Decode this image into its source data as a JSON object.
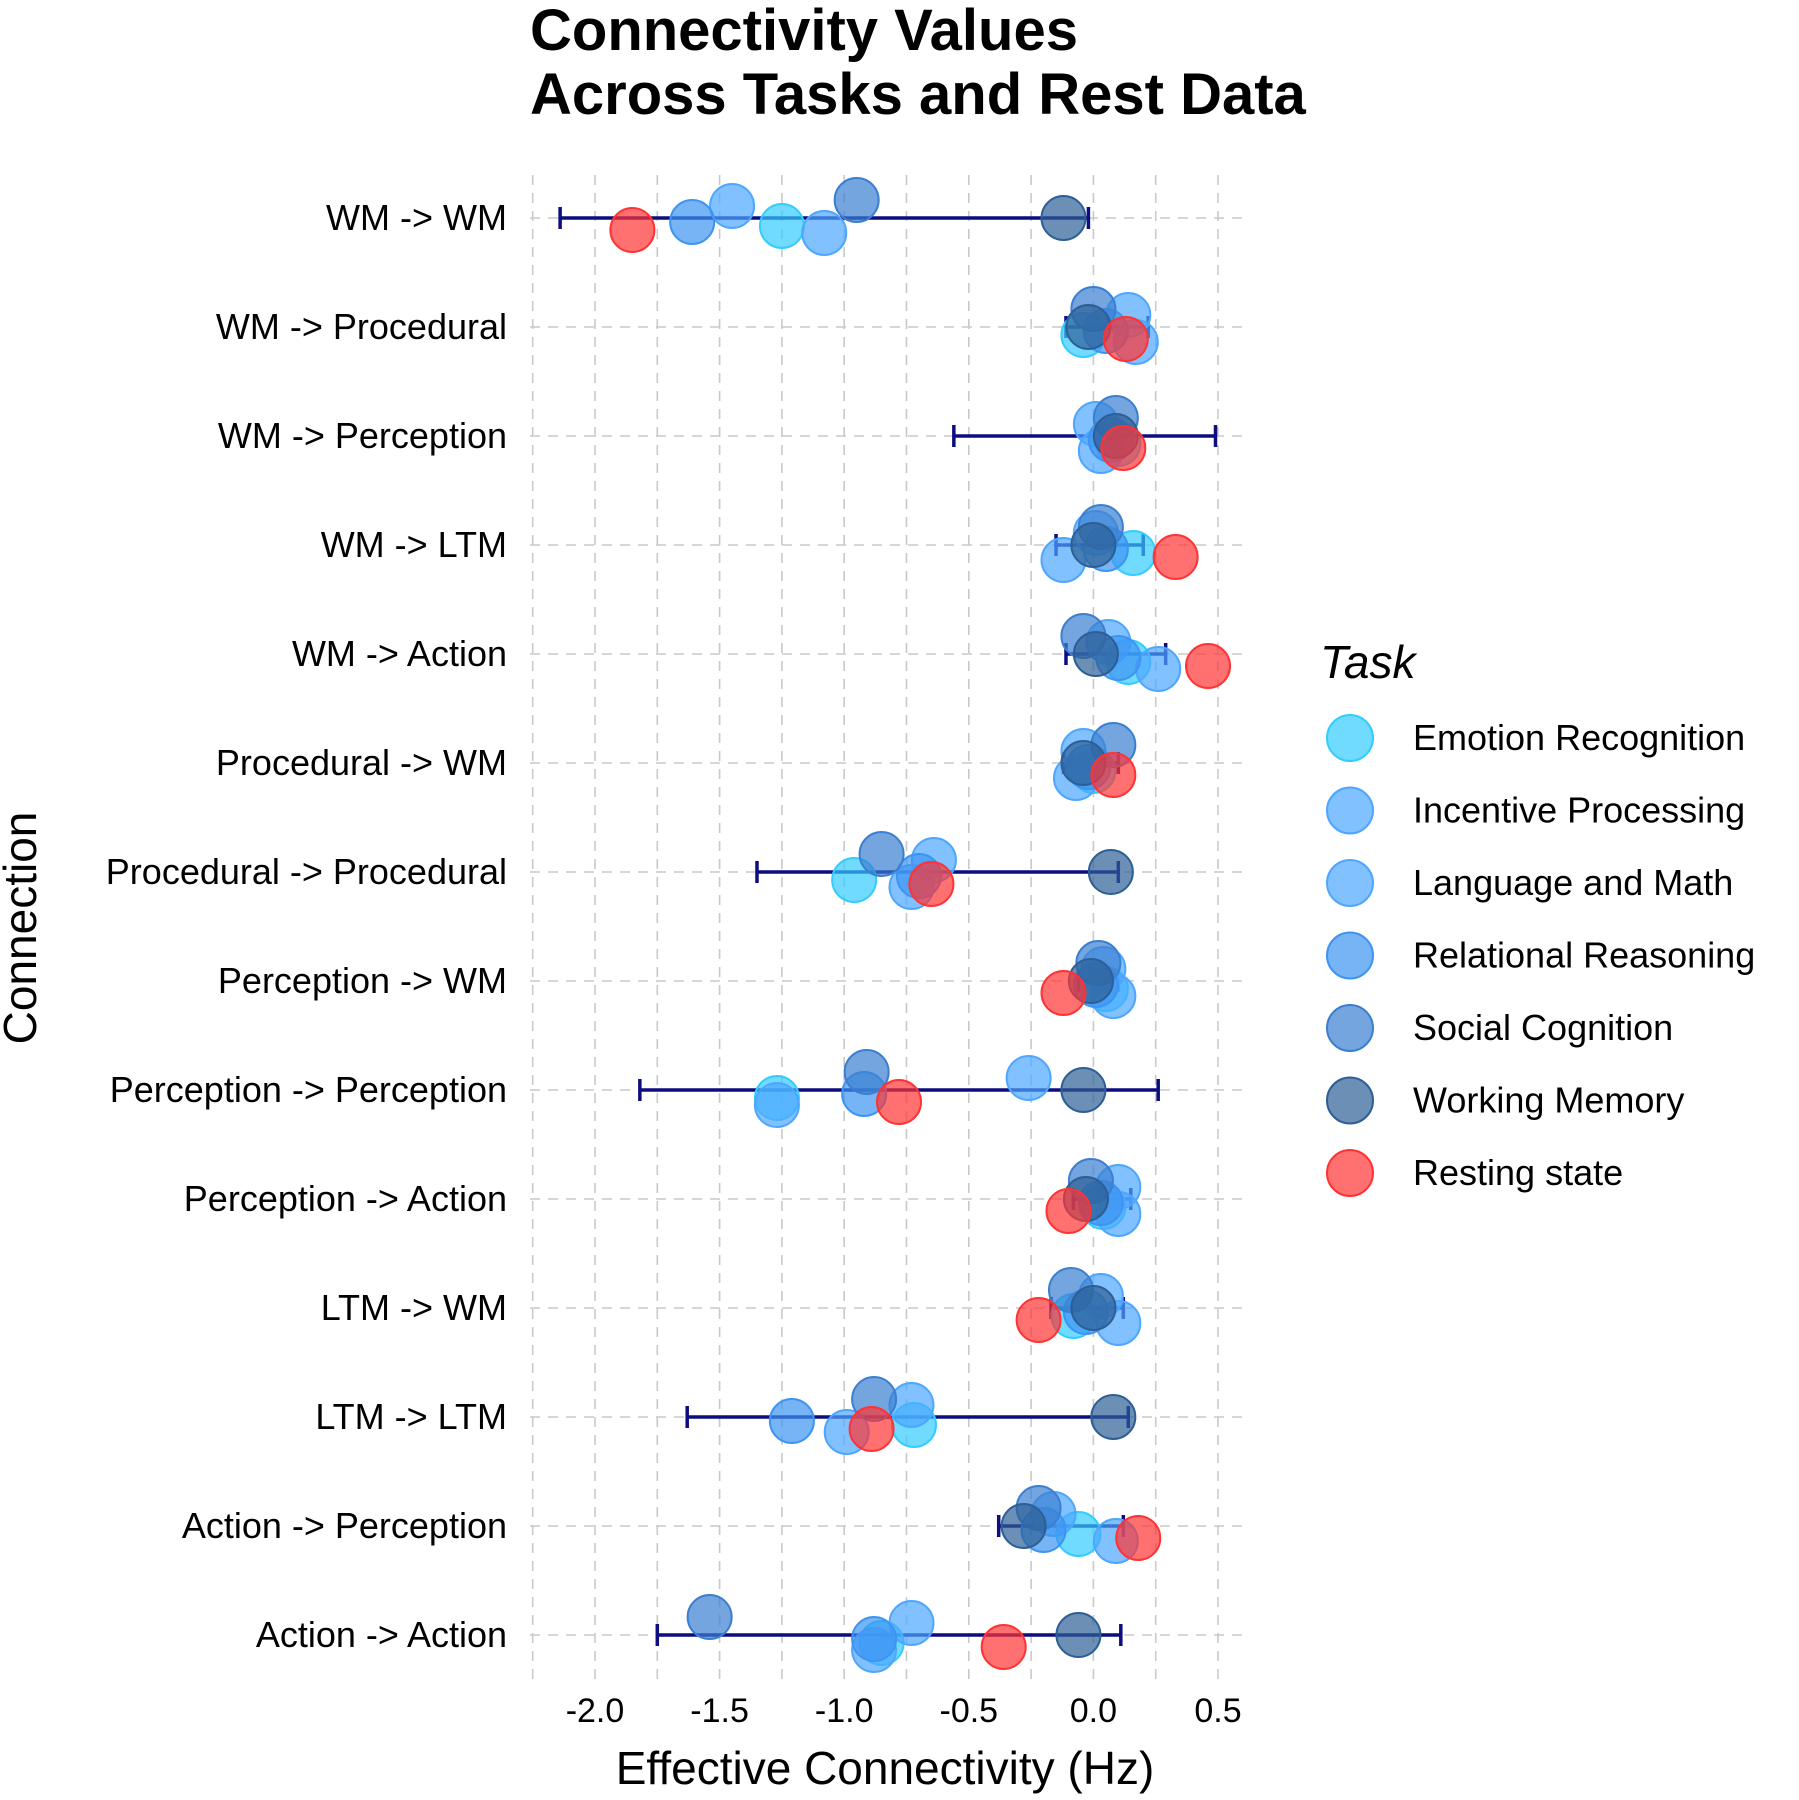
{
  "chart_data": {
    "type": "scatter",
    "title_lines": [
      "Connectivity Values",
      "Across Tasks and Rest Data"
    ],
    "xlabel": "Effective Connectivity (Hz)",
    "ylabel": "Connection",
    "xlim": [
      -2.25,
      0.6
    ],
    "xticks": [
      -2.0,
      -1.5,
      -1.0,
      -0.5,
      0.0,
      0.5
    ],
    "xtick_labels": [
      "-2.0",
      "-1.5",
      "-1.0",
      "-0.5",
      "0.0",
      "0.5"
    ],
    "grid": true,
    "legend": {
      "title": "Task",
      "position": "right"
    },
    "connections": [
      "WM -> WM",
      "WM -> Procedural",
      "WM -> Perception",
      "WM -> LTM",
      "WM -> Action",
      "Procedural -> WM",
      "Procedural -> Procedural",
      "Perception -> WM",
      "Perception -> Perception",
      "Perception -> Action",
      "LTM -> WM",
      "LTM -> LTM",
      "Action -> Perception",
      "Action -> Action"
    ],
    "series": [
      {
        "name": "Emotion Recognition",
        "color": "#33ccff",
        "values": [
          -1.25,
          -0.04,
          0.1,
          0.16,
          0.14,
          0.0,
          -0.96,
          0.05,
          -1.27,
          0.04,
          -0.08,
          -0.72,
          -0.06,
          -0.85
        ]
      },
      {
        "name": "Incentive Processing",
        "color": "#4da6ff",
        "values": [
          -1.08,
          0.17,
          0.03,
          -0.12,
          0.26,
          -0.07,
          -0.73,
          0.08,
          -1.27,
          0.1,
          0.1,
          -0.99,
          0.09,
          -0.88
        ]
      },
      {
        "name": "Language and Math",
        "color": "#4da6ff",
        "values": [
          -1.45,
          0.14,
          0.01,
          0.01,
          0.06,
          -0.04,
          -0.64,
          0.04,
          -0.26,
          0.1,
          0.03,
          -0.73,
          -0.16,
          -0.73
        ]
      },
      {
        "name": "Relational Reasoning",
        "color": "#3d94f2",
        "values": [
          -1.61,
          0.05,
          0.07,
          0.05,
          0.1,
          -0.02,
          -0.7,
          0.01,
          -0.92,
          0.03,
          -0.03,
          -1.21,
          -0.2,
          -0.88
        ]
      },
      {
        "name": "Social Cognition",
        "color": "#3a7fd0",
        "values": [
          -0.95,
          0.0,
          0.09,
          0.03,
          -0.04,
          0.08,
          -0.85,
          0.02,
          -0.91,
          -0.01,
          -0.09,
          -0.88,
          -0.22,
          -1.54
        ]
      },
      {
        "name": "Working Memory",
        "color": "#2d5f96",
        "values": [
          -0.12,
          -0.02,
          0.09,
          0.0,
          0.01,
          -0.04,
          0.07,
          -0.01,
          -0.04,
          -0.03,
          0.0,
          0.08,
          -0.28,
          -0.06
        ]
      },
      {
        "name": "Resting state",
        "color": "#ff3333",
        "values": [
          -1.85,
          0.13,
          0.12,
          0.33,
          0.46,
          0.08,
          -0.65,
          -0.12,
          -0.78,
          -0.1,
          -0.22,
          -0.89,
          0.18,
          -0.36
        ]
      }
    ],
    "error_bars": [
      {
        "low": -2.14,
        "high": -0.02
      },
      {
        "low": -0.11,
        "high": 0.22
      },
      {
        "low": -0.56,
        "high": 0.49
      },
      {
        "low": -0.15,
        "high": 0.2
      },
      {
        "low": -0.11,
        "high": 0.29
      },
      {
        "low": -0.12,
        "high": 0.1
      },
      {
        "low": -1.35,
        "high": 0.1
      },
      {
        "low": -0.06,
        "high": 0.1
      },
      {
        "low": -1.82,
        "high": 0.26
      },
      {
        "low": -0.08,
        "high": 0.15
      },
      {
        "low": -0.17,
        "high": 0.12
      },
      {
        "low": -1.63,
        "high": 0.14
      },
      {
        "low": -0.38,
        "high": 0.12
      },
      {
        "low": -1.75,
        "high": 0.11
      }
    ]
  }
}
